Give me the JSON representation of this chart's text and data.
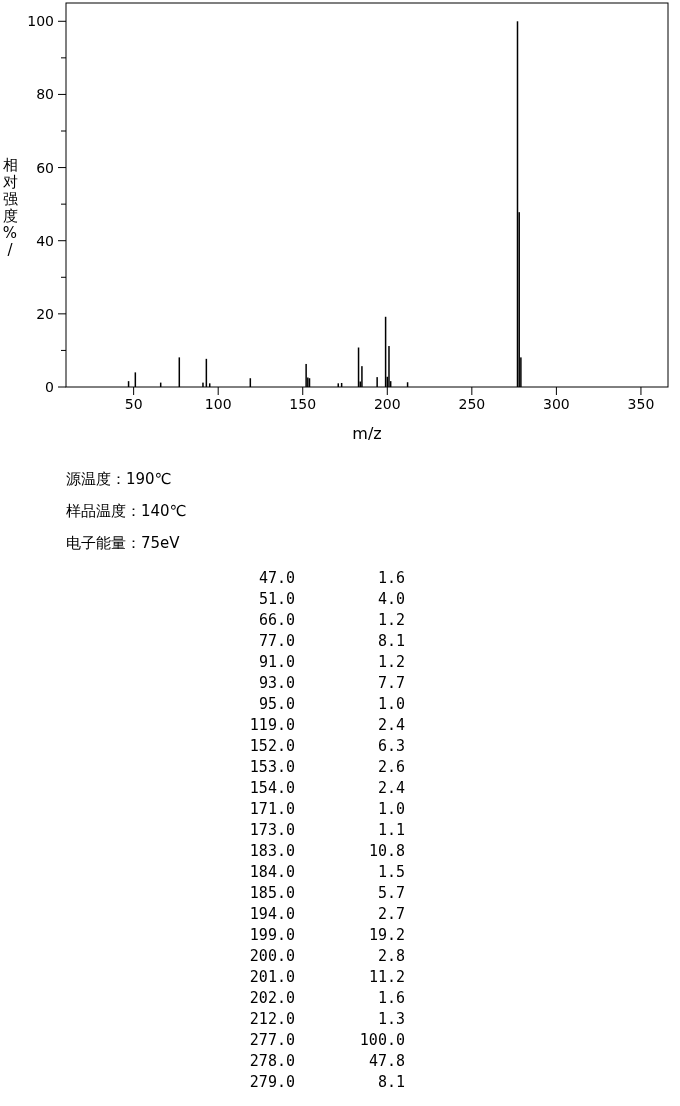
{
  "chart_data": [
    {
      "type": "bar",
      "xlabel": "m/z",
      "ylabel": "相对强度%/",
      "color": "#000000",
      "x": [
        47,
        51,
        66,
        77,
        91,
        93,
        95,
        119,
        152,
        153,
        154,
        171,
        173,
        183,
        184,
        185,
        194,
        199,
        200,
        201,
        202,
        212,
        277,
        278,
        279
      ],
      "values": [
        1.6,
        4.0,
        1.2,
        8.1,
        1.2,
        7.7,
        1.0,
        2.4,
        6.3,
        2.6,
        2.4,
        1.0,
        1.1,
        10.8,
        1.5,
        5.7,
        2.7,
        19.2,
        2.8,
        11.2,
        1.6,
        1.3,
        100.0,
        47.8,
        8.1
      ],
      "xlim": [
        10,
        366
      ],
      "xticks": [
        50,
        100,
        150,
        200,
        250,
        300,
        350
      ],
      "ylim": [
        0,
        105
      ],
      "yticks": [
        0,
        {
          "value": 10,
          "label": null
        },
        20,
        {
          "value": 30,
          "label": null
        },
        40,
        {
          "value": 50,
          "label": null
        },
        60,
        {
          "value": 70,
          "label": null
        },
        80,
        {
          "value": 90,
          "label": null
        },
        100
      ],
      "annotations": [
        "源温度：190℃",
        "样品温度：140℃",
        "电子能量：75eV"
      ]
    },
    {
      "type": "other",
      "categories": [
        "47.0",
        "51.0",
        "66.0",
        "77.0",
        "91.0",
        "93.0",
        "95.0",
        "119.0",
        "152.0",
        "153.0",
        "154.0",
        "171.0",
        "173.0",
        "183.0",
        "184.0",
        "185.0",
        "194.0",
        "199.0",
        "200.0",
        "201.0",
        "202.0",
        "212.0",
        "277.0",
        "278.0",
        "279.0"
      ],
      "value_labels": [
        "1.6",
        "4.0",
        "1.2",
        "8.1",
        "1.2",
        "7.7",
        "1.0",
        "2.4",
        "6.3",
        "2.6",
        "2.4",
        "1.0",
        "1.1",
        "10.8",
        "1.5",
        "5.7",
        "2.7",
        "19.2",
        "2.8",
        "11.2",
        "1.6",
        "1.3",
        "100.0",
        "47.8",
        "8.1"
      ]
    }
  ]
}
